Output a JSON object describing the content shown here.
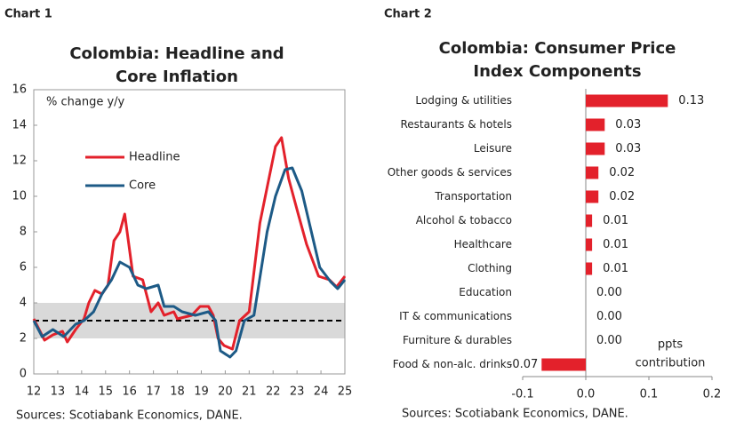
{
  "chart_data": [
    {
      "type": "line",
      "label": "Chart 1",
      "title": [
        "Colombia: Headline and",
        "Core Inflation"
      ],
      "y_label": "% change y/y",
      "source": "Sources: Scotiabank Economics, DANE.",
      "xlim": [
        12,
        25
      ],
      "xticks": [
        12,
        13,
        14,
        15,
        16,
        17,
        18,
        19,
        20,
        21,
        22,
        23,
        24,
        25
      ],
      "ylim": [
        0,
        16
      ],
      "yticks": [
        0,
        2,
        4,
        6,
        8,
        10,
        12,
        14,
        16
      ],
      "reference_band": [
        2,
        4
      ],
      "reference_line": 3,
      "band_color": "#d9d9d9",
      "series": [
        {
          "name": "Headline",
          "color": "#e3212b",
          "x": [
            12,
            12.45,
            12.8,
            13.2,
            13.4,
            13.75,
            14.1,
            14.3,
            14.55,
            14.85,
            15.1,
            15.35,
            15.6,
            15.8,
            16,
            16.15,
            16.55,
            16.9,
            17.2,
            17.45,
            17.85,
            18,
            18.6,
            18.95,
            19.3,
            19.5,
            19.7,
            19.95,
            20.3,
            20.6,
            21,
            21.45,
            21.75,
            22.1,
            22.35,
            22.65,
            23.05,
            23.4,
            23.9,
            24.35,
            24.65,
            25
          ],
          "values": [
            3.1,
            1.9,
            2.2,
            2.4,
            1.8,
            2.5,
            3.1,
            4.0,
            4.7,
            4.5,
            5.0,
            7.5,
            8.0,
            9.0,
            7.0,
            5.5,
            5.3,
            3.5,
            4.0,
            3.3,
            3.5,
            3.1,
            3.3,
            3.8,
            3.8,
            3.3,
            2.0,
            1.6,
            1.4,
            3.0,
            3.5,
            8.5,
            10.5,
            12.8,
            13.3,
            11.0,
            9.0,
            7.3,
            5.5,
            5.3,
            4.9,
            5.5
          ]
        },
        {
          "name": "Core",
          "color": "#1d5a86",
          "x": [
            12,
            12.35,
            12.8,
            13.25,
            13.75,
            14.1,
            14.5,
            14.85,
            15.25,
            15.6,
            16,
            16.35,
            16.7,
            17.2,
            17.45,
            17.85,
            18.2,
            18.75,
            19.3,
            19.6,
            19.8,
            20.2,
            20.45,
            20.8,
            21.2,
            21.75,
            22.1,
            22.5,
            22.8,
            23.2,
            23.6,
            23.95,
            24.4,
            24.7,
            25
          ],
          "values": [
            3.0,
            2.1,
            2.5,
            2.1,
            2.8,
            3.0,
            3.5,
            4.5,
            5.3,
            6.3,
            6.0,
            5.0,
            4.8,
            5.0,
            3.8,
            3.8,
            3.5,
            3.3,
            3.5,
            3.0,
            1.3,
            0.95,
            1.3,
            3.0,
            3.3,
            8.0,
            10.0,
            11.5,
            11.6,
            10.3,
            8.0,
            6.0,
            5.2,
            4.8,
            5.3
          ]
        }
      ]
    },
    {
      "type": "hbar",
      "label": "Chart 2",
      "title": [
        "Colombia: Consumer Price",
        "Index Components"
      ],
      "x_label": [
        "ppts",
        "contribution"
      ],
      "source": "Sources: Scotiabank Economics, DANE.",
      "color": "#e3212b",
      "categories": [
        "Lodging & utilities",
        "Restaurants & hotels",
        "Leisure",
        "Other goods & services",
        "Transportation",
        "Alcohol & tobacco",
        "Healthcare",
        "Clothing",
        "Education",
        "IT & communications",
        "Furniture & durables",
        "Food & non-alc. drinks"
      ],
      "values": [
        0.13,
        0.03,
        0.03,
        0.02,
        0.02,
        0.01,
        0.01,
        0.01,
        0,
        0,
        0,
        -0.07
      ],
      "value_labels": [
        "0.13",
        "0.03",
        "0.03",
        "0.02",
        "0.02",
        "0.01",
        "0.01",
        "0.01",
        "0.00",
        "0.00",
        "0.00",
        "-0.07"
      ],
      "xlim": [
        -0.1,
        0.2
      ],
      "xticks": [
        -0.1,
        {
          "value": 0,
          "label": "0.0"
        },
        0.1,
        0.2
      ]
    }
  ]
}
